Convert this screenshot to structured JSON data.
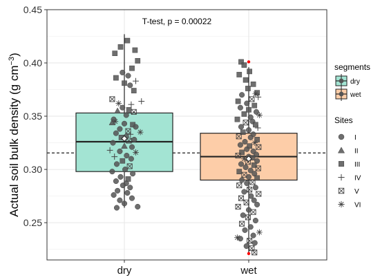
{
  "chart_data": {
    "type": "box",
    "annotation": "T-test, p = 0.00022",
    "ylabel_main": "Actual soil bulk density (g cm",
    "ylabel_sup": "−3",
    "ylabel_close": ")",
    "ylim": [
      0.215,
      0.45
    ],
    "yticks": [
      0.25,
      0.3,
      0.35,
      0.4,
      0.45
    ],
    "ytick_labels": [
      "0.25",
      "0.30",
      "0.35",
      "0.40",
      "0.45"
    ],
    "categories": [
      "dry",
      "wet"
    ],
    "reference_line": 0.3155,
    "grid": true,
    "boxes": [
      {
        "name": "dry",
        "color": "#a3e4d3",
        "min": 0.264,
        "q1": 0.298,
        "median": 0.326,
        "q3": 0.353,
        "max": 0.427,
        "mean": 0.329
      },
      {
        "name": "wet",
        "color": "#fdcda8",
        "min": 0.222,
        "q1": 0.29,
        "median": 0.312,
        "q3": 0.334,
        "max": 0.396,
        "mean": 0.31,
        "outliers": [
          0.401,
          0.221
        ]
      }
    ],
    "outlier_color": "#ff0000",
    "legend": {
      "segments_title": "segments",
      "segments": [
        {
          "label": "dry",
          "color": "#a3e4d3"
        },
        {
          "label": "wet",
          "color": "#fdcda8"
        }
      ],
      "sites_title": "Sites",
      "sites": [
        {
          "label": "I",
          "shape": "circle"
        },
        {
          "label": "II",
          "shape": "triangle"
        },
        {
          "label": "III",
          "shape": "square"
        },
        {
          "label": "IV",
          "shape": "plus"
        },
        {
          "label": "V",
          "shape": "boxx"
        },
        {
          "label": "VI",
          "shape": "asterisk"
        }
      ]
    },
    "points": [
      {
        "group": "dry",
        "shape": "square",
        "y": 0.421,
        "jx": 0.08
      },
      {
        "group": "dry",
        "shape": "square",
        "y": 0.415,
        "jx": -0.1
      },
      {
        "group": "dry",
        "shape": "square",
        "y": 0.412,
        "jx": 0.28
      },
      {
        "group": "dry",
        "shape": "square",
        "y": 0.409,
        "jx": -0.25
      },
      {
        "group": "dry",
        "shape": "square",
        "y": 0.402,
        "jx": 0.35
      },
      {
        "group": "dry",
        "shape": "square",
        "y": 0.395,
        "jx": 0.2
      },
      {
        "group": "dry",
        "shape": "square",
        "y": 0.386,
        "jx": -0.22
      },
      {
        "group": "dry",
        "shape": "square",
        "y": 0.381,
        "jx": 0.0
      },
      {
        "group": "dry",
        "shape": "square",
        "y": 0.374,
        "jx": 0.25
      },
      {
        "group": "dry",
        "shape": "circle",
        "y": 0.391,
        "jx": -0.05
      },
      {
        "group": "dry",
        "shape": "circle",
        "y": 0.388,
        "jx": 0.1
      },
      {
        "group": "dry",
        "shape": "circle",
        "y": 0.379,
        "jx": 0.15
      },
      {
        "group": "dry",
        "shape": "plus",
        "y": 0.383,
        "jx": 0.3
      },
      {
        "group": "dry",
        "shape": "boxx",
        "y": 0.366,
        "jx": -0.32
      },
      {
        "group": "dry",
        "shape": "plus",
        "y": 0.364,
        "jx": 0.45
      },
      {
        "group": "dry",
        "shape": "plus",
        "y": 0.361,
        "jx": 0.18
      },
      {
        "group": "dry",
        "shape": "asterisk",
        "y": 0.362,
        "jx": -0.15
      },
      {
        "group": "dry",
        "shape": "circle",
        "y": 0.358,
        "jx": -0.05
      },
      {
        "group": "dry",
        "shape": "square",
        "y": 0.356,
        "jx": 0.12
      },
      {
        "group": "dry",
        "shape": "triangle",
        "y": 0.355,
        "jx": -0.18
      },
      {
        "group": "dry",
        "shape": "boxx",
        "y": 0.354,
        "jx": 0.25
      },
      {
        "group": "dry",
        "shape": "circle",
        "y": 0.351,
        "jx": 0.05
      },
      {
        "group": "dry",
        "shape": "circle",
        "y": 0.347,
        "jx": -0.28
      },
      {
        "group": "dry",
        "shape": "triangle",
        "y": 0.344,
        "jx": -0.32
      },
      {
        "group": "dry",
        "shape": "circle",
        "y": 0.343,
        "jx": 0.0
      },
      {
        "group": "dry",
        "shape": "square",
        "y": 0.342,
        "jx": 0.22
      },
      {
        "group": "dry",
        "shape": "asterisk",
        "y": 0.345,
        "jx": -0.24
      },
      {
        "group": "dry",
        "shape": "circle",
        "y": 0.34,
        "jx": 0.3
      },
      {
        "group": "dry",
        "shape": "circle",
        "y": 0.338,
        "jx": -0.12
      },
      {
        "group": "dry",
        "shape": "boxx",
        "y": 0.336,
        "jx": 0.1
      },
      {
        "group": "dry",
        "shape": "asterisk",
        "y": 0.335,
        "jx": 0.42
      },
      {
        "group": "dry",
        "shape": "circle",
        "y": 0.334,
        "jx": -0.22
      },
      {
        "group": "dry",
        "shape": "plus",
        "y": 0.333,
        "jx": 0.16
      },
      {
        "group": "dry",
        "shape": "circle",
        "y": 0.331,
        "jx": 0.05
      },
      {
        "group": "dry",
        "shape": "square",
        "y": 0.33,
        "jx": -0.08
      },
      {
        "group": "dry",
        "shape": "circle",
        "y": 0.328,
        "jx": 0.26
      },
      {
        "group": "dry",
        "shape": "boxx",
        "y": 0.327,
        "jx": 0.12
      },
      {
        "group": "dry",
        "shape": "circle",
        "y": 0.325,
        "jx": -0.3
      },
      {
        "group": "dry",
        "shape": "triangle",
        "y": 0.322,
        "jx": 0.0
      },
      {
        "group": "dry",
        "shape": "circle",
        "y": 0.321,
        "jx": 0.2
      },
      {
        "group": "dry",
        "shape": "plus",
        "y": 0.318,
        "jx": -0.38
      },
      {
        "group": "dry",
        "shape": "circle",
        "y": 0.317,
        "jx": -0.12
      },
      {
        "group": "dry",
        "shape": "asterisk",
        "y": 0.316,
        "jx": 0.3
      },
      {
        "group": "dry",
        "shape": "plus",
        "y": 0.312,
        "jx": -0.26
      },
      {
        "group": "dry",
        "shape": "circle",
        "y": 0.313,
        "jx": 0.06
      },
      {
        "group": "dry",
        "shape": "circle",
        "y": 0.31,
        "jx": 0.18
      },
      {
        "group": "dry",
        "shape": "square",
        "y": 0.308,
        "jx": -0.05
      },
      {
        "group": "dry",
        "shape": "circle",
        "y": 0.305,
        "jx": -0.2
      },
      {
        "group": "dry",
        "shape": "boxx",
        "y": 0.303,
        "jx": 0.14
      },
      {
        "group": "dry",
        "shape": "circle",
        "y": 0.3,
        "jx": 0.02
      },
      {
        "group": "dry",
        "shape": "circle",
        "y": 0.298,
        "jx": -0.32
      },
      {
        "group": "dry",
        "shape": "circle",
        "y": 0.296,
        "jx": 0.22
      },
      {
        "group": "dry",
        "shape": "circle",
        "y": 0.293,
        "jx": -0.1
      },
      {
        "group": "dry",
        "shape": "square",
        "y": 0.291,
        "jx": 0.1
      },
      {
        "group": "dry",
        "shape": "circle",
        "y": 0.289,
        "jx": -0.22
      },
      {
        "group": "dry",
        "shape": "circle",
        "y": 0.287,
        "jx": 0.05
      },
      {
        "group": "dry",
        "shape": "circle",
        "y": 0.285,
        "jx": -0.04
      },
      {
        "group": "dry",
        "shape": "circle",
        "y": 0.283,
        "jx": 0.15
      },
      {
        "group": "dry",
        "shape": "circle",
        "y": 0.28,
        "jx": -0.18
      },
      {
        "group": "dry",
        "shape": "circle",
        "y": 0.278,
        "jx": 0.08
      },
      {
        "group": "dry",
        "shape": "circle",
        "y": 0.276,
        "jx": -0.28
      },
      {
        "group": "dry",
        "shape": "circle",
        "y": 0.273,
        "jx": 0.2
      },
      {
        "group": "dry",
        "shape": "circle",
        "y": 0.271,
        "jx": -0.12
      },
      {
        "group": "dry",
        "shape": "circle",
        "y": 0.268,
        "jx": 0.0
      },
      {
        "group": "dry",
        "shape": "circle",
        "y": 0.265,
        "jx": 0.35
      },
      {
        "group": "dry",
        "shape": "circle",
        "y": 0.264,
        "jx": -0.2
      },
      {
        "group": "wet",
        "shape": "square",
        "y": 0.401,
        "jx": -0.2
      },
      {
        "group": "wet",
        "shape": "square",
        "y": 0.398,
        "jx": -0.12
      },
      {
        "group": "wet",
        "shape": "square",
        "y": 0.392,
        "jx": 0.02
      },
      {
        "group": "wet",
        "shape": "square",
        "y": 0.389,
        "jx": -0.25
      },
      {
        "group": "wet",
        "shape": "square",
        "y": 0.384,
        "jx": -0.08
      },
      {
        "group": "wet",
        "shape": "square",
        "y": 0.38,
        "jx": 0.12
      },
      {
        "group": "wet",
        "shape": "square",
        "y": 0.376,
        "jx": -0.02
      },
      {
        "group": "wet",
        "shape": "square",
        "y": 0.372,
        "jx": 0.22
      },
      {
        "group": "wet",
        "shape": "circle",
        "y": 0.37,
        "jx": -0.18
      },
      {
        "group": "wet",
        "shape": "asterisk",
        "y": 0.371,
        "jx": 0.18
      },
      {
        "group": "wet",
        "shape": "plus",
        "y": 0.368,
        "jx": 0.25
      },
      {
        "group": "wet",
        "shape": "boxx",
        "y": 0.366,
        "jx": 0.08
      },
      {
        "group": "wet",
        "shape": "square",
        "y": 0.364,
        "jx": -0.28
      },
      {
        "group": "wet",
        "shape": "circle",
        "y": 0.362,
        "jx": -0.05
      },
      {
        "group": "wet",
        "shape": "square",
        "y": 0.36,
        "jx": 0.15
      },
      {
        "group": "wet",
        "shape": "circle",
        "y": 0.358,
        "jx": -0.22
      },
      {
        "group": "wet",
        "shape": "square",
        "y": 0.356,
        "jx": 0.0
      },
      {
        "group": "wet",
        "shape": "circle",
        "y": 0.354,
        "jx": 0.2
      },
      {
        "group": "wet",
        "shape": "square",
        "y": 0.352,
        "jx": -0.12
      },
      {
        "group": "wet",
        "shape": "asterisk",
        "y": 0.351,
        "jx": 0.28
      },
      {
        "group": "wet",
        "shape": "circle",
        "y": 0.349,
        "jx": 0.05
      },
      {
        "group": "wet",
        "shape": "square",
        "y": 0.347,
        "jx": -0.3
      },
      {
        "group": "wet",
        "shape": "circle",
        "y": 0.345,
        "jx": 0.1
      },
      {
        "group": "wet",
        "shape": "boxx",
        "y": 0.344,
        "jx": -0.08
      },
      {
        "group": "wet",
        "shape": "square",
        "y": 0.342,
        "jx": 0.18
      },
      {
        "group": "wet",
        "shape": "circle",
        "y": 0.34,
        "jx": -0.2
      },
      {
        "group": "wet",
        "shape": "plus",
        "y": 0.339,
        "jx": 0.24
      },
      {
        "group": "wet",
        "shape": "circle",
        "y": 0.337,
        "jx": 0.0
      },
      {
        "group": "wet",
        "shape": "square",
        "y": 0.335,
        "jx": -0.15
      },
      {
        "group": "wet",
        "shape": "circle",
        "y": 0.333,
        "jx": 0.12
      },
      {
        "group": "wet",
        "shape": "boxx",
        "y": 0.331,
        "jx": -0.26
      },
      {
        "group": "wet",
        "shape": "circle",
        "y": 0.33,
        "jx": 0.05
      },
      {
        "group": "wet",
        "shape": "square",
        "y": 0.328,
        "jx": 0.22
      },
      {
        "group": "wet",
        "shape": "circle",
        "y": 0.326,
        "jx": -0.1
      },
      {
        "group": "wet",
        "shape": "asterisk",
        "y": 0.325,
        "jx": 0.16
      },
      {
        "group": "wet",
        "shape": "circle",
        "y": 0.323,
        "jx": -0.22
      },
      {
        "group": "wet",
        "shape": "square",
        "y": 0.322,
        "jx": 0.02
      },
      {
        "group": "wet",
        "shape": "boxx",
        "y": 0.321,
        "jx": 0.26
      },
      {
        "group": "wet",
        "shape": "circle",
        "y": 0.319,
        "jx": -0.05
      },
      {
        "group": "wet",
        "shape": "circle",
        "y": 0.317,
        "jx": 0.12
      },
      {
        "group": "wet",
        "shape": "square",
        "y": 0.316,
        "jx": -0.18
      },
      {
        "group": "wet",
        "shape": "circle",
        "y": 0.314,
        "jx": 0.2
      },
      {
        "group": "wet",
        "shape": "boxx",
        "y": 0.313,
        "jx": -0.28
      },
      {
        "group": "wet",
        "shape": "circle",
        "y": 0.312,
        "jx": 0.0
      },
      {
        "group": "wet",
        "shape": "square",
        "y": 0.311,
        "jx": 0.1
      },
      {
        "group": "wet",
        "shape": "asterisk",
        "y": 0.31,
        "jx": -0.12
      },
      {
        "group": "wet",
        "shape": "circle",
        "y": 0.308,
        "jx": 0.22
      },
      {
        "group": "wet",
        "shape": "boxx",
        "y": 0.307,
        "jx": -0.02
      },
      {
        "group": "wet",
        "shape": "circle",
        "y": 0.305,
        "jx": -0.2
      },
      {
        "group": "wet",
        "shape": "square",
        "y": 0.304,
        "jx": 0.14
      },
      {
        "group": "wet",
        "shape": "circle",
        "y": 0.302,
        "jx": -0.08
      },
      {
        "group": "wet",
        "shape": "boxx",
        "y": 0.301,
        "jx": 0.25
      },
      {
        "group": "wet",
        "shape": "circle",
        "y": 0.299,
        "jx": 0.05
      },
      {
        "group": "wet",
        "shape": "square",
        "y": 0.298,
        "jx": -0.25
      },
      {
        "group": "wet",
        "shape": "circle",
        "y": 0.296,
        "jx": 0.15
      },
      {
        "group": "wet",
        "shape": "boxx",
        "y": 0.295,
        "jx": -0.12
      },
      {
        "group": "wet",
        "shape": "circle",
        "y": 0.293,
        "jx": 0.0
      },
      {
        "group": "wet",
        "shape": "square",
        "y": 0.292,
        "jx": 0.22
      },
      {
        "group": "wet",
        "shape": "circle",
        "y": 0.29,
        "jx": -0.18
      },
      {
        "group": "wet",
        "shape": "boxx",
        "y": 0.288,
        "jx": 0.1
      },
      {
        "group": "wet",
        "shape": "circle",
        "y": 0.287,
        "jx": -0.05
      },
      {
        "group": "wet",
        "shape": "boxx",
        "y": 0.285,
        "jx": -0.25
      },
      {
        "group": "wet",
        "shape": "circle",
        "y": 0.283,
        "jx": 0.18
      },
      {
        "group": "wet",
        "shape": "boxx",
        "y": 0.281,
        "jx": 0.02
      },
      {
        "group": "wet",
        "shape": "circle",
        "y": 0.279,
        "jx": -0.12
      },
      {
        "group": "wet",
        "shape": "boxx",
        "y": 0.277,
        "jx": 0.26
      },
      {
        "group": "wet",
        "shape": "circle",
        "y": 0.275,
        "jx": 0.06
      },
      {
        "group": "wet",
        "shape": "boxx",
        "y": 0.273,
        "jx": -0.2
      },
      {
        "group": "wet",
        "shape": "circle",
        "y": 0.271,
        "jx": 0.14
      },
      {
        "group": "wet",
        "shape": "boxx",
        "y": 0.269,
        "jx": -0.06
      },
      {
        "group": "wet",
        "shape": "circle",
        "y": 0.267,
        "jx": 0.22
      },
      {
        "group": "wet",
        "shape": "boxx",
        "y": 0.265,
        "jx": -0.28
      },
      {
        "group": "wet",
        "shape": "circle",
        "y": 0.262,
        "jx": 0.0
      },
      {
        "group": "wet",
        "shape": "boxx",
        "y": 0.26,
        "jx": 0.12
      },
      {
        "group": "wet",
        "shape": "circle",
        "y": 0.257,
        "jx": -0.15
      },
      {
        "group": "wet",
        "shape": "boxx",
        "y": 0.255,
        "jx": -0.02
      },
      {
        "group": "wet",
        "shape": "circle",
        "y": 0.252,
        "jx": 0.18
      },
      {
        "group": "wet",
        "shape": "boxx",
        "y": 0.249,
        "jx": -0.18
      },
      {
        "group": "wet",
        "shape": "circle",
        "y": 0.246,
        "jx": 0.05
      },
      {
        "group": "wet",
        "shape": "circle",
        "y": 0.243,
        "jx": -0.1
      },
      {
        "group": "wet",
        "shape": "asterisk",
        "y": 0.241,
        "jx": 0.28
      },
      {
        "group": "wet",
        "shape": "circle",
        "y": 0.238,
        "jx": 0.12
      },
      {
        "group": "wet",
        "shape": "circle",
        "y": 0.235,
        "jx": -0.22
      },
      {
        "group": "wet",
        "shape": "asterisk",
        "y": 0.236,
        "jx": -0.3
      },
      {
        "group": "wet",
        "shape": "boxx",
        "y": 0.233,
        "jx": 0.02
      },
      {
        "group": "wet",
        "shape": "circle",
        "y": 0.231,
        "jx": 0.16
      },
      {
        "group": "wet",
        "shape": "circle",
        "y": 0.228,
        "jx": -0.06
      },
      {
        "group": "wet",
        "shape": "boxx",
        "y": 0.226,
        "jx": 0.08
      },
      {
        "group": "wet",
        "shape": "boxx",
        "y": 0.222,
        "jx": 0.15
      }
    ]
  }
}
